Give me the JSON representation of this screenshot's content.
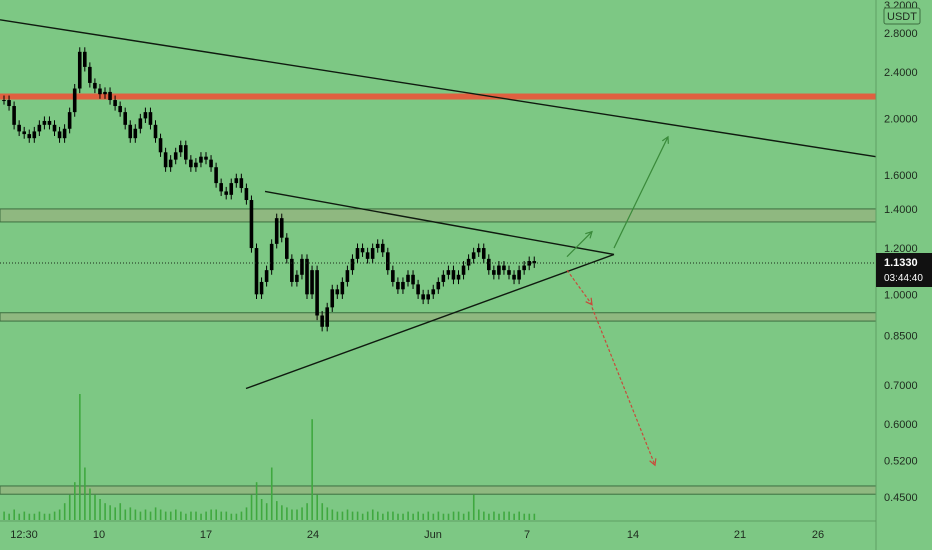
{
  "chart_data": {
    "type": "candlestick",
    "currency_label": "USDT",
    "y_ticks": [
      "3.2000",
      "2.8000",
      "2.4000",
      "2.0000",
      "1.6000",
      "1.4000",
      "1.2000",
      "1.0000",
      "0.8500",
      "0.7000",
      "0.6000",
      "0.5200",
      "0.4500"
    ],
    "x_ticks": [
      "12:30",
      "10",
      "17",
      "24",
      "Jun",
      "7",
      "14",
      "21",
      "26"
    ],
    "current_price": "1.1330",
    "countdown": "03:44:40",
    "scale": "log",
    "ylim": [
      0.4,
      3.3
    ],
    "grid": false,
    "colors": {
      "background": "#7dc884",
      "candle": "#000000",
      "volume": "#3fa83f",
      "resistance_band": "#e06040",
      "zone_band": "#8fb880",
      "up_arrow": "#3a8a3a",
      "down_arrow": "#c84a3a"
    },
    "horizontal_levels": [
      {
        "role": "resistance",
        "price": 2.18
      },
      {
        "role": "zone",
        "from": 1.33,
        "to": 1.4
      },
      {
        "role": "zone",
        "from": 0.9,
        "to": 0.93
      },
      {
        "role": "zone",
        "from": 0.455,
        "to": 0.47
      }
    ],
    "close_series": [
      2.15,
      2.1,
      1.95,
      1.9,
      1.88,
      1.85,
      1.9,
      1.95,
      1.98,
      1.95,
      1.9,
      1.85,
      1.92,
      2.05,
      2.25,
      2.6,
      2.45,
      2.3,
      2.25,
      2.2,
      2.22,
      2.15,
      2.1,
      2.05,
      1.95,
      1.85,
      1.92,
      2.0,
      2.05,
      1.95,
      1.85,
      1.75,
      1.65,
      1.7,
      1.75,
      1.8,
      1.7,
      1.65,
      1.68,
      1.72,
      1.7,
      1.65,
      1.55,
      1.5,
      1.48,
      1.55,
      1.58,
      1.52,
      1.45,
      1.2,
      1.0,
      1.05,
      1.1,
      1.22,
      1.35,
      1.25,
      1.15,
      1.05,
      1.08,
      1.15,
      1.0,
      1.1,
      0.92,
      0.88,
      0.95,
      1.02,
      1.0,
      1.05,
      1.1,
      1.15,
      1.2,
      1.18,
      1.15,
      1.2,
      1.22,
      1.18,
      1.1,
      1.05,
      1.02,
      1.05,
      1.08,
      1.04,
      1.0,
      0.98,
      1.0,
      1.02,
      1.05,
      1.08,
      1.1,
      1.06,
      1.08,
      1.12,
      1.15,
      1.18,
      1.2,
      1.15,
      1.1,
      1.08,
      1.12,
      1.1,
      1.08,
      1.06,
      1.1,
      1.12,
      1.14,
      1.13
    ],
    "volume_series": [
      4,
      3,
      5,
      3,
      4,
      3,
      3,
      4,
      3,
      3,
      4,
      5,
      8,
      12,
      18,
      60,
      25,
      15,
      12,
      10,
      8,
      7,
      6,
      8,
      5,
      6,
      5,
      4,
      5,
      4,
      6,
      5,
      4,
      4,
      5,
      4,
      3,
      4,
      4,
      3,
      4,
      5,
      5,
      4,
      4,
      3,
      3,
      4,
      6,
      12,
      18,
      10,
      8,
      25,
      9,
      7,
      6,
      5,
      5,
      6,
      8,
      48,
      12,
      8,
      6,
      5,
      4,
      4,
      5,
      4,
      4,
      3,
      4,
      5,
      4,
      3,
      4,
      4,
      3,
      3,
      4,
      3,
      4,
      3,
      4,
      3,
      4,
      3,
      3,
      4,
      4,
      3,
      4,
      12,
      5,
      4,
      3,
      4,
      3,
      4,
      4,
      3,
      4,
      3,
      3,
      3
    ],
    "trendlines": [
      {
        "from": {
          "x": "start",
          "y": 2.95
        },
        "to": {
          "x": "right_edge",
          "y": 1.72
        }
      },
      {
        "from": {
          "x": "May 21",
          "y": 1.5
        },
        "to": {
          "x": "Jun 10",
          "y": 1.17
        }
      },
      {
        "from": {
          "x": "May 20",
          "y": 0.69
        },
        "to": {
          "x": "Jun 10",
          "y": 1.17
        }
      }
    ],
    "arrows": [
      {
        "direction": "up",
        "path": [
          [
            1.16,
            "Jun 8"
          ],
          [
            1.28,
            "Jun 9"
          ]
        ]
      },
      {
        "direction": "up",
        "path": [
          [
            1.2,
            "Jun 10"
          ],
          [
            1.86,
            "Jun 16"
          ]
        ]
      },
      {
        "direction": "down",
        "path": [
          [
            1.1,
            "Jun 8"
          ],
          [
            0.96,
            "Jun 9"
          ]
        ]
      },
      {
        "direction": "down",
        "path": [
          [
            0.95,
            "Jun 9"
          ],
          [
            0.51,
            "Jun 14"
          ]
        ]
      }
    ]
  }
}
